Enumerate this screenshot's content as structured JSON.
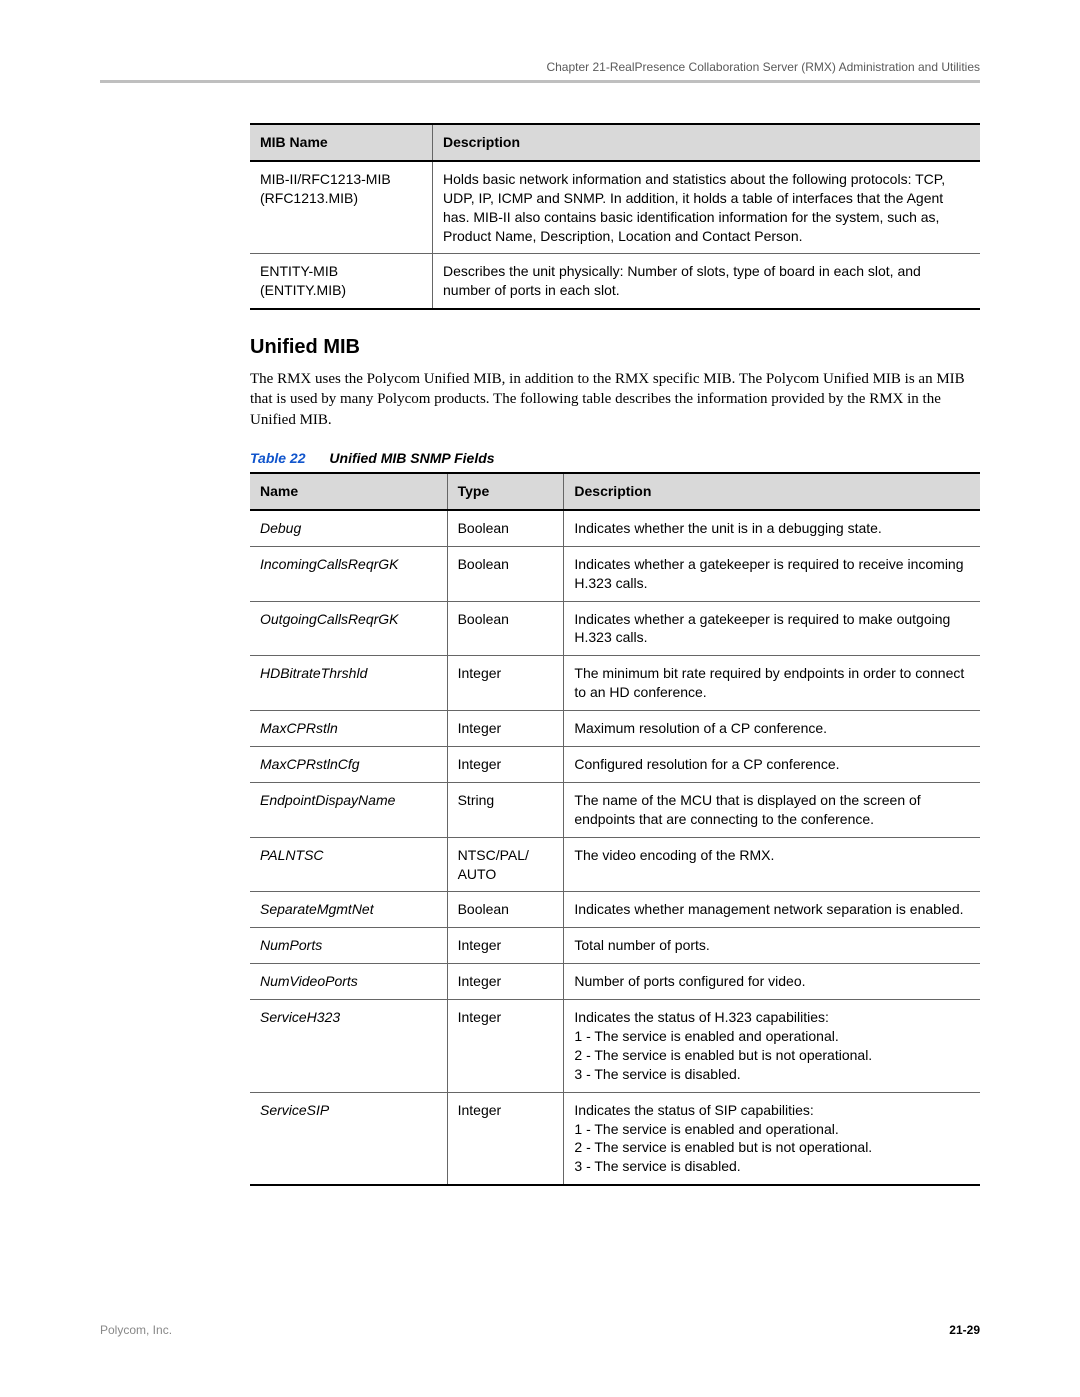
{
  "header": "Chapter 21-RealPresence Collaboration Server (RMX) Administration and Utilities",
  "table1": {
    "columns": [
      "MIB Name",
      "Description"
    ],
    "rows": [
      [
        "MIB-II/RFC1213-MIB (RFC1213.MIB)",
        "Holds basic network information and statistics about the following protocols: TCP, UDP, IP, ICMP and SNMP. In addition, it holds a table of interfaces that the Agent has. MIB-II also contains basic identification information for the system, such as, Product Name, Description, Location and Contact Person."
      ],
      [
        "ENTITY-MIB (ENTITY.MIB)",
        "Describes the unit physically: Number of slots, type of board in each slot, and number of ports in each slot."
      ]
    ]
  },
  "section": {
    "heading": "Unified MIB",
    "paragraph": "The RMX uses the Polycom Unified MIB, in addition to the RMX specific MIB. The Polycom Unified MIB is an MIB that is used by many Polycom products. The following table describes the information provided by the RMX in the Unified MIB."
  },
  "table2_caption_label": "Table 22",
  "table2_caption_title": "Unified MIB SNMP Fields",
  "table2": {
    "columns": [
      "Name",
      "Type",
      "Description"
    ],
    "rows": [
      [
        "Debug",
        "Boolean",
        "Indicates whether the unit is in a debugging state."
      ],
      [
        "IncomingCallsReqrGK",
        "Boolean",
        "Indicates whether a gatekeeper is required to receive incoming H.323 calls."
      ],
      [
        "OutgoingCallsReqrGK",
        "Boolean",
        "Indicates whether a gatekeeper is required to make outgoing H.323 calls."
      ],
      [
        "HDBitrateThrshld",
        "Integer",
        "The minimum bit rate required by endpoints in order to connect to an HD conference."
      ],
      [
        "MaxCPRstln",
        "Integer",
        "Maximum resolution of a CP conference."
      ],
      [
        "MaxCPRstlnCfg",
        "Integer",
        "Configured resolution for a CP conference."
      ],
      [
        "EndpointDispayName",
        "String",
        "The name of the MCU that is displayed on the screen of endpoints that are connecting to the conference."
      ],
      [
        "PALNTSC",
        "NTSC/PAL/ AUTO",
        "The video encoding of the RMX."
      ],
      [
        "SeparateMgmtNet",
        "Boolean",
        "Indicates whether management network separation is enabled."
      ],
      [
        "NumPorts",
        "Integer",
        "Total number of ports."
      ],
      [
        "NumVideoPorts",
        "Integer",
        "Number of ports configured for video."
      ],
      [
        "ServiceH323",
        "Integer",
        "Indicates the status of H.323 capabilities:\n1 - The service is enabled and operational.\n2 - The service is enabled but is not operational.\n3 - The service is disabled."
      ],
      [
        "ServiceSIP",
        "Integer",
        "Indicates the status of SIP capabilities:\n1 - The service is enabled and operational.\n2 - The service is enabled but is not operational.\n3 - The service is disabled."
      ]
    ]
  },
  "footer": {
    "company": "Polycom, Inc.",
    "pagenum": "21-29"
  }
}
